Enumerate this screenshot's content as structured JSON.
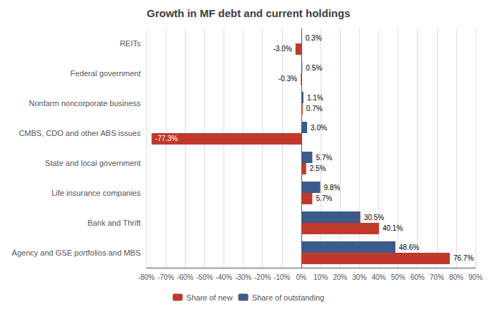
{
  "chart_data": {
    "type": "bar",
    "orientation": "horizontal",
    "title": "Growth in MF debt and current holdings",
    "categories": [
      "Agency and GSE portfolios and MBS",
      "Bank and Thrift",
      "Life insurance companies",
      "State and local government",
      "CMBS, CDO and other ABS issues",
      "Nonfarm noncorporate business",
      "Federal government",
      "REITs"
    ],
    "series": [
      {
        "name": "Share of new",
        "color": "#C0392B",
        "values": [
          76.7,
          40.1,
          5.7,
          2.5,
          -77.3,
          0.7,
          -0.3,
          -3.0
        ],
        "value_labels": [
          "76.7%",
          "40.1%",
          "5.7%",
          "2.5%",
          "-77.3%",
          "0.7%",
          "-0.3%",
          "-3.0%"
        ]
      },
      {
        "name": "Share of outstanding",
        "color": "#3D5A8A",
        "values": [
          48.6,
          30.5,
          9.8,
          5.7,
          3.0,
          1.1,
          0.5,
          0.3
        ],
        "value_labels": [
          "48.6%",
          "30.5%",
          "9.8%",
          "5.7%",
          "3.0%",
          "1.1%",
          "0.5%",
          "0.3%"
        ]
      }
    ],
    "xlim": [
      -80,
      90
    ],
    "xticks": [
      {
        "value": -80,
        "label": "-80%"
      },
      {
        "value": -70,
        "label": "-70%"
      },
      {
        "value": -60,
        "label": "-60%"
      },
      {
        "value": -50,
        "label": "-50%"
      },
      {
        "value": -40,
        "label": "-40%"
      },
      {
        "value": -30,
        "label": "-30%"
      },
      {
        "value": -20,
        "label": "-20%"
      },
      {
        "value": -10,
        "label": "-10%"
      },
      {
        "value": 0,
        "label": "0%"
      },
      {
        "value": 10,
        "label": "10%"
      },
      {
        "value": 20,
        "label": "20%"
      },
      {
        "value": 30,
        "label": "30%"
      },
      {
        "value": 40,
        "label": "40%"
      },
      {
        "value": 50,
        "label": "50%"
      },
      {
        "value": 60,
        "label": "60%"
      },
      {
        "value": 70,
        "label": "70%"
      },
      {
        "value": 80,
        "label": "80%"
      },
      {
        "value": 90,
        "label": "90%"
      }
    ],
    "grid": true,
    "legend": "bottom",
    "data_labels": true
  }
}
